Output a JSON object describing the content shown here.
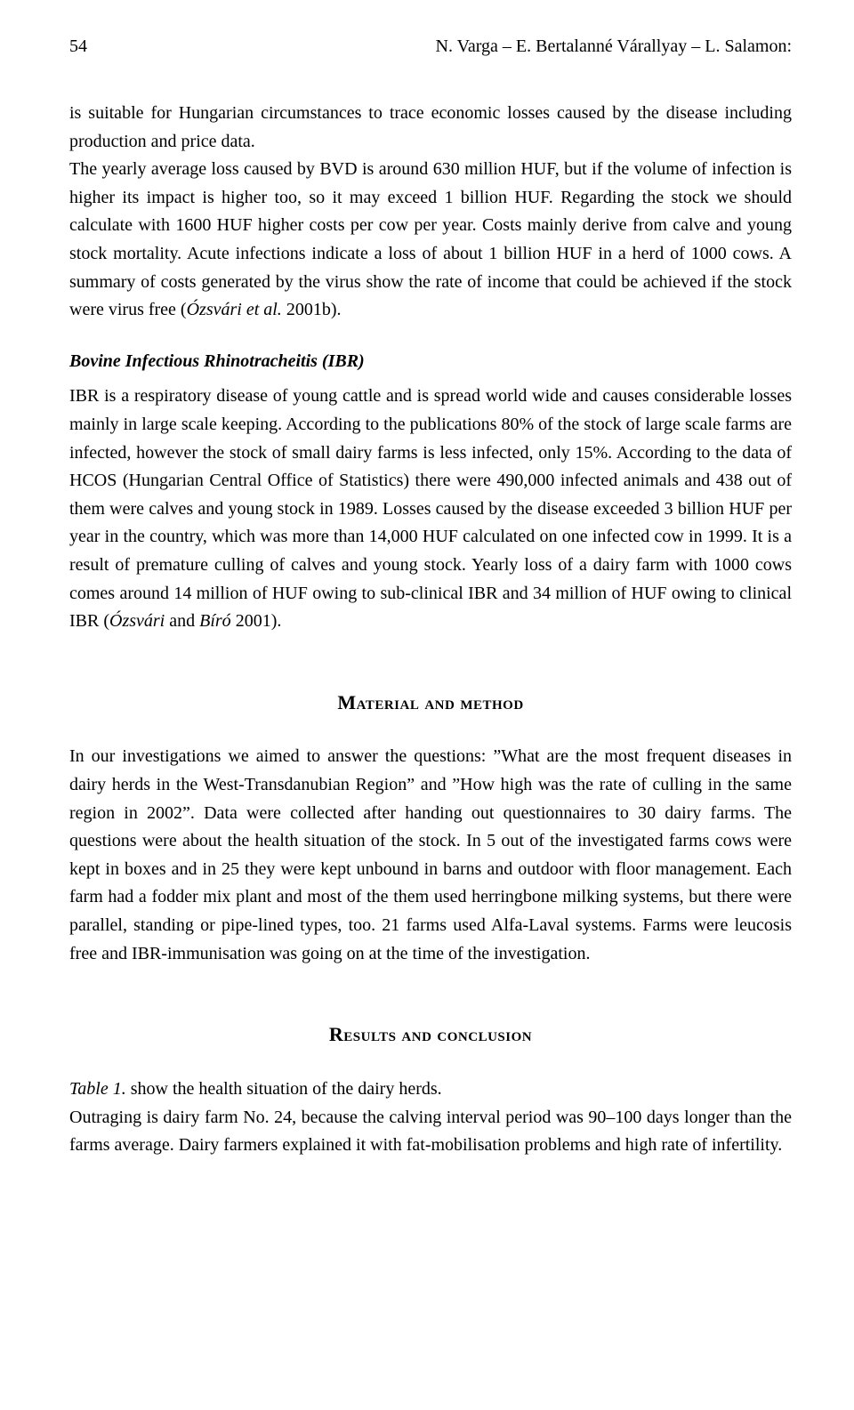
{
  "page_number": "54",
  "running_header": "N. Varga – E. Bertalanné Várallyay – L. Salamon:",
  "body": {
    "para1": "is suitable for Hungarian circumstances to trace economic losses caused by the disease including production and price data.",
    "para2a": "The yearly average loss caused by BVD is around 630 million HUF, but if the volume of infection is higher its impact is higher too, so it may exceed 1 billion HUF. Regarding the stock we should calculate with 1600 HUF higher costs per cow per year. Costs mainly derive from calve and young stock mortality. Acute infections indicate a loss of about 1 billion HUF in a herd of 1000 cows. A summary of costs generated by the virus show the rate of income that could be achieved if the stock were virus free (",
    "para2_cite": "Ózsvári et al.",
    "para2b": " 2001b).",
    "subhead_ibr": "Bovine Infectious Rhinotracheitis (IBR)",
    "para3a": "IBR is a respiratory disease of young cattle and is spread world wide and causes considerable losses mainly in large scale keeping. According to the publications 80% of the stock of large scale farms are infected, however the stock of small dairy farms is less infected, only 15%. According to the data of HCOS (Hungarian Central Office of Statistics) there were 490,000 infected animals and 438 out of them were calves and young stock in 1989. Losses caused by the disease exceeded 3 billion HUF per year in the country, which was more than 14,000 HUF calculated on one infected cow in 1999. It is a result of premature culling of calves and young stock. Yearly loss of a dairy farm with 1000 cows comes around 14 million of HUF owing to sub-clinical IBR and 34 million of HUF owing to clinical IBR (",
    "para3_cite1": "Ózsvári",
    "para3_mid": " and ",
    "para3_cite2": "Bíró",
    "para3b": " 2001).",
    "head_material": "Material and method",
    "para4": "In our investigations we aimed to answer the questions: ”What are the most frequent diseases in dairy herds in the West-Transdanubian Region” and ”How high was the rate of culling in the same region in 2002”. Data were collected after handing out questionnaires to 30 dairy farms. The questions were about the health situation of the stock. In 5 out of the investigated farms cows were kept in boxes and in 25 they were kept unbound in barns and outdoor with floor management. Each farm had a fodder mix plant and most of the them used herringbone milking systems, but there were parallel, standing or pipe-lined types, too. 21 farms used Alfa-Laval systems. Farms were leucosis free and IBR-immunisation was going on at the time of the investigation.",
    "head_results": "Results and conclusion",
    "results_line1_ref": "Table 1.",
    "results_line1_rest": " show the health situation of the dairy herds.",
    "results_para2": "Outraging is dairy farm No. 24, because the calving interval period was 90–100 days longer than the farms average. Dairy farmers explained it with fat-mobilisation problems and high rate of infertility."
  }
}
